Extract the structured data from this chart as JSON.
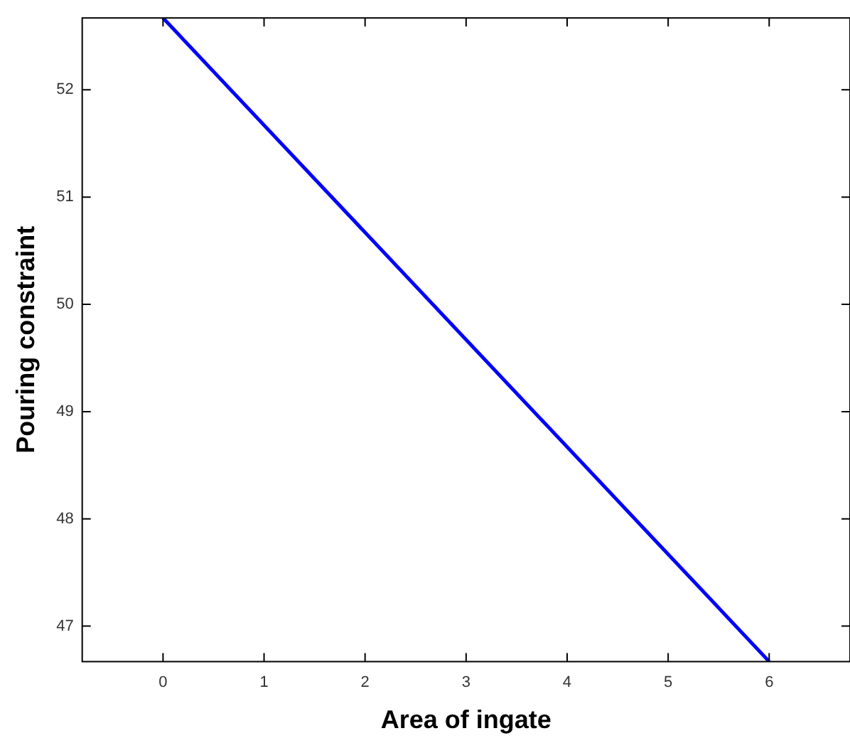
{
  "chart_data": {
    "type": "line",
    "xlabel": "Area of ingate",
    "ylabel": "Pouring constraint",
    "x": [
      0,
      6
    ],
    "series": [
      {
        "color": "#0000ff",
        "values": [
          52.67,
          46.67
        ]
      }
    ],
    "xlim": [
      -0.8,
      6.8
    ],
    "xticks": [
      0,
      1,
      2,
      3,
      4,
      5,
      6
    ],
    "ylim": [
      46.67,
      52.67
    ],
    "yticks": [
      47,
      48,
      49,
      50,
      51,
      52
    ],
    "grid": false,
    "legend": false,
    "marker": "none",
    "line_style": "solid"
  }
}
